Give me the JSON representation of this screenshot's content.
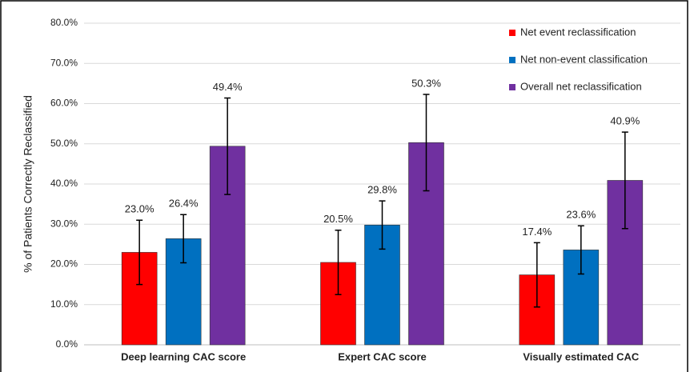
{
  "chart_data": {
    "type": "bar",
    "y_label": "% of Patients Correctly Reclassified",
    "categories": [
      "Deep learning CAC score",
      "Expert CAC score",
      "Visually estimated CAC"
    ],
    "series": [
      {
        "name": "Net event reclassification",
        "color": "#ff0000",
        "values": [
          23.0,
          20.5,
          17.4
        ],
        "value_labels": [
          "23.0%",
          "20.5%",
          "17.4%"
        ],
        "errors": [
          8,
          8,
          8
        ]
      },
      {
        "name": "Net non-event classification",
        "color": "#0070c0",
        "values": [
          26.4,
          29.8,
          23.6
        ],
        "value_labels": [
          "26.4%",
          "29.8%",
          "23.6%"
        ],
        "errors": [
          6,
          6,
          6
        ]
      },
      {
        "name": "Overall net reclassification",
        "color": "#7030a0",
        "values": [
          49.4,
          50.3,
          40.9
        ],
        "value_labels": [
          "49.4%",
          "50.3%",
          "40.9%"
        ],
        "errors": [
          12,
          12,
          12
        ]
      }
    ],
    "ylim": [
      0,
      80
    ],
    "yticks": [
      {
        "value": 0,
        "label": "0.0%"
      },
      {
        "value": 10,
        "label": "10.0%"
      },
      {
        "value": 20,
        "label": "20.0%"
      },
      {
        "value": 30,
        "label": "30.0%"
      },
      {
        "value": 40,
        "label": "40.0%"
      },
      {
        "value": 50,
        "label": "50.0%"
      },
      {
        "value": 60,
        "label": "60.0%"
      },
      {
        "value": 70,
        "label": "70.0%"
      },
      {
        "value": 80,
        "label": "80.0%"
      }
    ],
    "grid": true,
    "legend": "top-right"
  }
}
